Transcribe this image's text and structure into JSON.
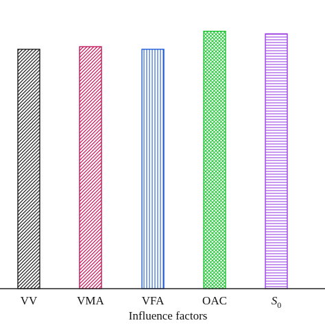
{
  "chart_data": {
    "type": "bar",
    "title": "",
    "xlabel": "Influence factors",
    "ylabel": "",
    "categories": [
      "VV",
      "VMA",
      "VFA",
      "OAC",
      "S0"
    ],
    "category_display": [
      {
        "main": "VV",
        "sub": ""
      },
      {
        "main": "VMA",
        "sub": ""
      },
      {
        "main": "VFA",
        "sub": ""
      },
      {
        "main": "OAC",
        "sub": ""
      },
      {
        "main": "S",
        "sub": "0"
      }
    ],
    "values": [
      0.93,
      0.94,
      0.93,
      1.0,
      0.99
    ],
    "ylim": [
      0,
      1.1
    ],
    "grid": false,
    "bar_styles": [
      {
        "color": "#222222",
        "pattern": "diagonal-left"
      },
      {
        "color": "#c2185b",
        "pattern": "diagonal-left"
      },
      {
        "color": "#1e5bd6",
        "pattern": "vertical"
      },
      {
        "color": "#22c437",
        "pattern": "cross"
      },
      {
        "color": "#9b3fe0",
        "pattern": "horizontal"
      }
    ]
  }
}
